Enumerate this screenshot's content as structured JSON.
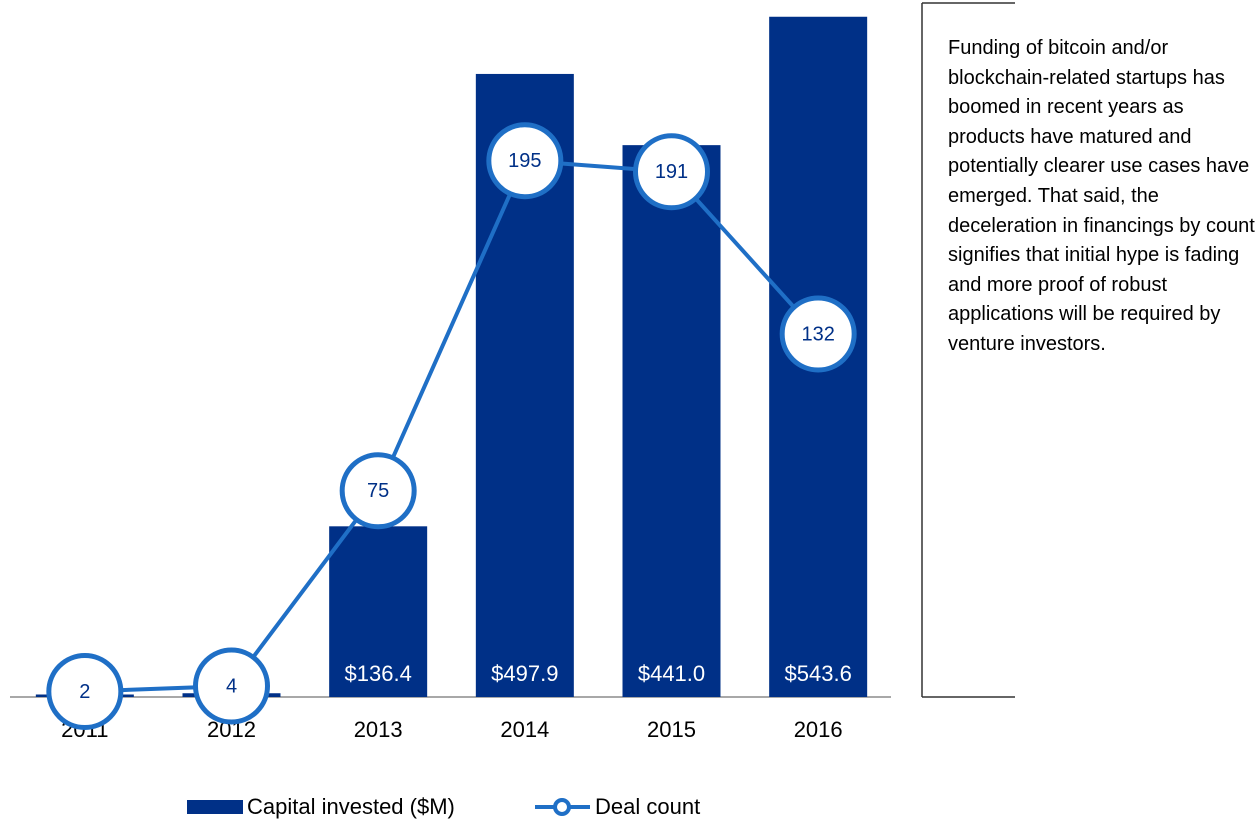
{
  "chart_data": {
    "type": "bar",
    "annotation": "Funding of bitcoin and/or blockchain-related startups has boomed in recent years as products have matured and potentially clearer use cases have emerged. That said, the deceleration in financings by count signifies that initial hype is fading and more proof of robust applications will be required by venture investors.",
    "categories": [
      "2011",
      "2012",
      "2013",
      "2014",
      "2015",
      "2016"
    ],
    "series": [
      {
        "name": "Capital invested ($M)",
        "type": "bar",
        "color": "#003087",
        "values": [
          2.0,
          3.0,
          136.4,
          497.9,
          441.0,
          543.6
        ],
        "value_labels": [
          null,
          null,
          "$136.4",
          "$497.9",
          "$441.0",
          "$543.6"
        ]
      },
      {
        "name": "Deal count",
        "type": "line",
        "axis": "y2",
        "color": "#1f6fc6",
        "values": [
          2,
          4,
          75,
          195,
          191,
          132
        ]
      }
    ],
    "ylim": [
      0,
      545
    ],
    "y2lim": [
      0,
      248
    ],
    "legend": "bottom"
  }
}
